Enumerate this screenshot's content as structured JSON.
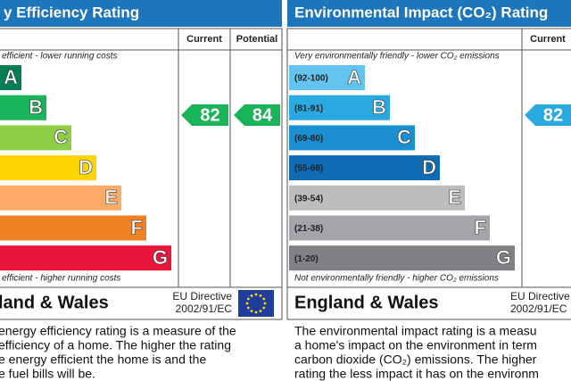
{
  "energy_panel": {
    "title": "y Efficiency Rating",
    "headers": [
      "Current",
      "Potential"
    ],
    "top_note": "efficient - lower running costs",
    "bands": [
      "A",
      "B",
      "C",
      "D",
      "E",
      "F",
      "G"
    ],
    "bottom_note": "efficient - higher running costs",
    "current": 82,
    "potential": 84,
    "region": "land & Wales",
    "directive": [
      "EU Directive",
      "2002/91/EC"
    ],
    "description": [
      "energy efficiency rating is a measure of the",
      "efficiency of a home. The higher the rating",
      "e energy efficient the home is and the",
      "e fuel bills will be."
    ]
  },
  "environment_panel": {
    "title": "Environmental Impact (CO₂) Rating",
    "headers": [
      "Current"
    ],
    "top_note": "Very environmentally friendly - lower CO₂ emissions",
    "bands": [
      {
        "range": "(92-100)",
        "letter": "A"
      },
      {
        "range": "(81-91)",
        "letter": "B"
      },
      {
        "range": "(69-80)",
        "letter": "C"
      },
      {
        "range": "(55-68)",
        "letter": "D"
      },
      {
        "range": "(39-54)",
        "letter": "E"
      },
      {
        "range": "(21-38)",
        "letter": "F"
      },
      {
        "range": "(1-20)",
        "letter": "G"
      }
    ],
    "bottom_note": "Not environmentally friendly - higher CO₂ emissions",
    "current": 82,
    "region": "England & Wales",
    "directive": [
      "EU Directive",
      "2002/91/EC"
    ],
    "description": [
      "The environmental impact rating is a measu",
      "a home's impact on the environment in term",
      "carbon dioxide (CO₂) emissions. The higher",
      "rating the less impact it has on the environm"
    ]
  }
}
